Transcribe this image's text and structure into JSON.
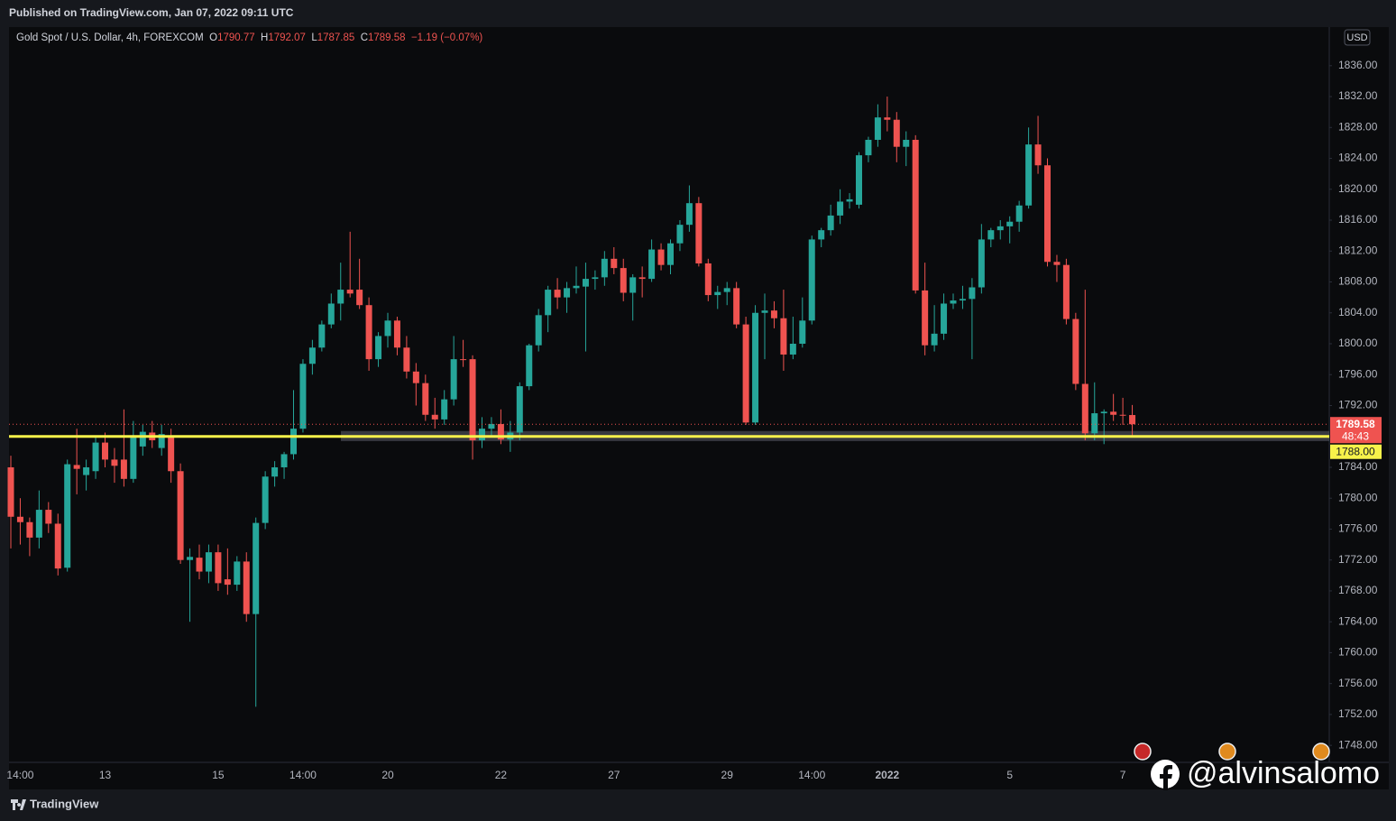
{
  "header": {
    "published": "Published on TradingView.com, Jan 07, 2022 09:11 UTC"
  },
  "chart_data": {
    "type": "candlestick",
    "legend_title": "Gold Spot / U.S. Dollar, 4h, FOREXCOM",
    "ohlc_legend": [
      {
        "label": "O",
        "value": "1790.77"
      },
      {
        "label": "H",
        "value": "1792.07"
      },
      {
        "label": "L",
        "value": "1787.85"
      },
      {
        "label": "C",
        "value": "1789.58"
      }
    ],
    "change": "−1.19 (−0.07%)",
    "categories": [
      null,
      "14:00",
      null,
      null,
      null,
      null,
      null,
      null,
      null,
      null,
      "13",
      null,
      null,
      null,
      null,
      null,
      null,
      null,
      null,
      null,
      null,
      null,
      "15",
      null,
      null,
      null,
      null,
      null,
      null,
      null,
      null,
      "14:00",
      null,
      null,
      null,
      null,
      null,
      null,
      null,
      null,
      "20",
      null,
      null,
      null,
      null,
      null,
      null,
      null,
      null,
      null,
      null,
      null,
      "22",
      null,
      null,
      null,
      null,
      null,
      null,
      null,
      null,
      null,
      null,
      null,
      "27",
      null,
      null,
      null,
      null,
      null,
      null,
      null,
      null,
      null,
      null,
      null,
      "29",
      null,
      null,
      null,
      null,
      null,
      null,
      null,
      null,
      "14:00",
      null,
      null,
      null,
      null,
      null,
      null,
      null,
      "2022",
      null,
      null,
      null,
      null,
      null,
      null,
      null,
      null,
      null,
      null,
      null,
      null,
      "5",
      null,
      null,
      null,
      null,
      null,
      null,
      null,
      null,
      null,
      null,
      null,
      "7",
      null
    ],
    "open": [
      1784.0,
      1777.6,
      1776.9,
      1774.9,
      1778.5,
      1776.7,
      1771.0,
      1784.3,
      1783.0,
      1783.5,
      1787.2,
      1785.0,
      1785.0,
      1782.5,
      1786.7,
      1788.5,
      1786.5,
      1788.0,
      1783.5,
      1772.0,
      1772.3,
      1770.5,
      1773.0,
      1769.5,
      1768.8,
      1771.8,
      1765.0,
      1776.8,
      1782.8,
      1784.0,
      1785.7,
      1789.0,
      1797.4,
      1799.5,
      1802.5,
      1805.2,
      1807.0,
      1807.0,
      1805.0,
      1798.0,
      1801.0,
      1803.0,
      1799.5,
      1796.4,
      1794.9,
      1790.8,
      1790.2,
      1792.8,
      1798.0,
      1798.0,
      1787.5,
      1789.0,
      1789.6,
      1787.6,
      1788.5,
      1794.5,
      1799.8,
      1803.7,
      1807.0,
      1806.0,
      1807.2,
      1807.4,
      1808.4,
      1808.6,
      1811.0,
      1809.8,
      1806.6,
      1808.6,
      1808.4,
      1812.2,
      1810.2,
      1813.0,
      1815.4,
      1818.2,
      1810.4,
      1806.3,
      1806.7,
      1807.2,
      1802.5,
      1789.8,
      1804.0,
      1804.3,
      1803.3,
      1798.6,
      1800.0,
      1803.0,
      1813.5,
      1814.7,
      1816.6,
      1818.4,
      1818.0,
      1824.4,
      1826.4,
      1829.3,
      1829.0,
      1825.5,
      1826.4,
      1806.9,
      1799.8,
      1801.3,
      1805.2,
      1805.6,
      1805.8,
      1807.3,
      1813.5,
      1814.7,
      1815.2,
      1815.8,
      1817.9,
      1825.8,
      1823.1,
      1810.6,
      1810.2,
      1803.2,
      1794.8,
      1788.4,
      1791.0,
      1791.2,
      1790.8,
      1790.77
    ],
    "high": [
      1785.5,
      1780.0,
      1777.5,
      1781.0,
      1779.5,
      1778.0,
      1785.0,
      1789.0,
      1785.0,
      1788.0,
      1788.5,
      1786.5,
      1791.5,
      1790.0,
      1789.5,
      1790.0,
      1789.5,
      1789.0,
      1784.5,
      1773.5,
      1774.0,
      1774.0,
      1774.0,
      1773.5,
      1772.5,
      1773.0,
      1777.5,
      1783.5,
      1784.8,
      1786.0,
      1794.0,
      1798.0,
      1800.5,
      1803.0,
      1806.5,
      1810.5,
      1814.5,
      1811.0,
      1806.0,
      1801.5,
      1804.0,
      1803.5,
      1801.0,
      1797.5,
      1796.0,
      1793.0,
      1794.0,
      1801.0,
      1800.5,
      1798.5,
      1790.5,
      1790.5,
      1791.5,
      1790.0,
      1795.0,
      1800.0,
      1804.5,
      1807.5,
      1808.5,
      1808.0,
      1810.0,
      1810.5,
      1809.5,
      1812.0,
      1812.5,
      1811.0,
      1809.0,
      1810.0,
      1813.5,
      1813.0,
      1813.5,
      1816.0,
      1820.5,
      1819.0,
      1811.0,
      1807.5,
      1808.0,
      1808.0,
      1803.5,
      1805.0,
      1806.5,
      1805.5,
      1807.0,
      1803.5,
      1806.0,
      1814.0,
      1815.0,
      1818.0,
      1820.0,
      1819.5,
      1824.8,
      1826.8,
      1831.0,
      1832.0,
      1830.0,
      1827.5,
      1827.0,
      1810.5,
      1805.0,
      1806.5,
      1806.5,
      1807.5,
      1808.5,
      1815.5,
      1815.0,
      1816.0,
      1816.5,
      1818.5,
      1828.0,
      1829.5,
      1824.0,
      1811.5,
      1811.0,
      1804.0,
      1807.0,
      1795.0,
      1791.5,
      1793.5,
      1793.0,
      1792.07
    ],
    "low": [
      1773.5,
      1774.0,
      1772.5,
      1773.5,
      1775.5,
      1770.0,
      1770.5,
      1780.5,
      1781.0,
      1782.5,
      1784.0,
      1782.0,
      1781.5,
      1782.0,
      1785.5,
      1786.5,
      1785.5,
      1782.0,
      1771.5,
      1764.0,
      1769.5,
      1769.0,
      1768.0,
      1767.5,
      1768.0,
      1764.0,
      1753.0,
      1776.0,
      1781.5,
      1782.5,
      1785.0,
      1788.5,
      1796.0,
      1799.0,
      1802.0,
      1803.0,
      1806.0,
      1804.5,
      1796.5,
      1797.0,
      1799.5,
      1798.5,
      1795.5,
      1792.0,
      1790.0,
      1789.0,
      1789.5,
      1792.0,
      1797.0,
      1785.0,
      1786.5,
      1788.0,
      1787.0,
      1786.0,
      1787.5,
      1794.0,
      1799.0,
      1801.5,
      1804.5,
      1804.0,
      1806.5,
      1799.0,
      1807.0,
      1807.5,
      1809.0,
      1805.5,
      1803.0,
      1806.0,
      1808.0,
      1809.5,
      1809.0,
      1812.0,
      1814.5,
      1810.0,
      1805.5,
      1804.5,
      1805.0,
      1802.0,
      1789.5,
      1789.5,
      1798.0,
      1802.0,
      1796.5,
      1798.0,
      1799.5,
      1802.5,
      1812.5,
      1814.0,
      1815.5,
      1817.5,
      1817.5,
      1823.5,
      1825.5,
      1827.5,
      1823.5,
      1823.0,
      1806.5,
      1798.5,
      1799.0,
      1800.5,
      1804.5,
      1804.5,
      1798.0,
      1806.5,
      1812.5,
      1813.5,
      1813.0,
      1814.5,
      1817.5,
      1822.0,
      1810.0,
      1808.0,
      1802.5,
      1794.0,
      1787.5,
      1787.5,
      1787.0,
      1790.0,
      1789.5,
      1787.85
    ],
    "close": [
      1777.6,
      1776.9,
      1774.9,
      1778.5,
      1776.7,
      1770.9,
      1784.4,
      1783.8,
      1784.0,
      1787.2,
      1785.0,
      1784.2,
      1782.5,
      1788.0,
      1788.6,
      1787.5,
      1788.3,
      1783.5,
      1772.0,
      1772.4,
      1770.5,
      1773.0,
      1769.0,
      1768.8,
      1771.8,
      1765.0,
      1776.8,
      1782.8,
      1784.0,
      1785.7,
      1789.0,
      1797.4,
      1799.5,
      1802.5,
      1805.2,
      1807.0,
      1806.5,
      1805.0,
      1798.0,
      1801.0,
      1803.0,
      1799.5,
      1796.4,
      1794.9,
      1790.8,
      1790.2,
      1792.8,
      1798.0,
      1797.9,
      1787.5,
      1789.0,
      1789.6,
      1787.6,
      1788.5,
      1794.5,
      1799.8,
      1803.7,
      1807.0,
      1806.0,
      1807.2,
      1807.5,
      1808.4,
      1808.6,
      1811.0,
      1809.8,
      1806.6,
      1808.6,
      1808.4,
      1812.2,
      1810.2,
      1813.0,
      1815.4,
      1818.2,
      1810.4,
      1806.3,
      1806.7,
      1807.2,
      1802.5,
      1789.8,
      1804.0,
      1804.3,
      1803.3,
      1798.6,
      1800.0,
      1803.0,
      1813.5,
      1814.7,
      1816.6,
      1818.4,
      1818.7,
      1824.4,
      1826.4,
      1829.3,
      1829.0,
      1825.5,
      1826.4,
      1806.9,
      1799.8,
      1801.3,
      1805.2,
      1805.6,
      1805.8,
      1807.3,
      1813.5,
      1814.7,
      1815.2,
      1815.8,
      1817.9,
      1825.8,
      1823.1,
      1810.6,
      1810.2,
      1803.2,
      1794.8,
      1788.4,
      1791.0,
      1791.2,
      1790.8,
      1790.77,
      1789.58
    ],
    "up_color": "#26a69a",
    "down_color": "#ef5350",
    "ylim": [
      1745.8,
      1841.0
    ],
    "yticks": [
      {
        "value": 1748,
        "label": "1748.00"
      },
      {
        "value": 1752,
        "label": "1752.00"
      },
      {
        "value": 1756,
        "label": "1756.00"
      },
      {
        "value": 1760,
        "label": "1760.00"
      },
      {
        "value": 1764,
        "label": "1764.00"
      },
      {
        "value": 1768,
        "label": "1768.00"
      },
      {
        "value": 1772,
        "label": "1772.00"
      },
      {
        "value": 1776,
        "label": "1776.00"
      },
      {
        "value": 1780,
        "label": "1780.00"
      },
      {
        "value": 1784,
        "label": "1784.00"
      },
      {
        "value": 1792,
        "label": "1792.00"
      },
      {
        "value": 1796,
        "label": "1796.00"
      },
      {
        "value": 1800,
        "label": "1800.00"
      },
      {
        "value": 1804,
        "label": "1804.00"
      },
      {
        "value": 1808,
        "label": "1808.00"
      },
      {
        "value": 1812,
        "label": "1812.00"
      },
      {
        "value": 1816,
        "label": "1816.00"
      },
      {
        "value": 1820,
        "label": "1820.00"
      },
      {
        "value": 1824,
        "label": "1824.00"
      },
      {
        "value": 1828,
        "label": "1828.00"
      },
      {
        "value": 1832,
        "label": "1832.00"
      },
      {
        "value": 1836,
        "label": "1836.00"
      }
    ],
    "grid": false,
    "currency": "USD",
    "last_price": 1789.58,
    "countdown": "48:43",
    "level": {
      "value": 1788,
      "label": "1788.00",
      "color": "#f7f24a"
    },
    "zone": {
      "low": 1787.4,
      "high": 1788.7,
      "color": "#5d606b"
    }
  },
  "footer": {
    "brand": "TradingView",
    "watermark": "@alvinsalomo"
  }
}
